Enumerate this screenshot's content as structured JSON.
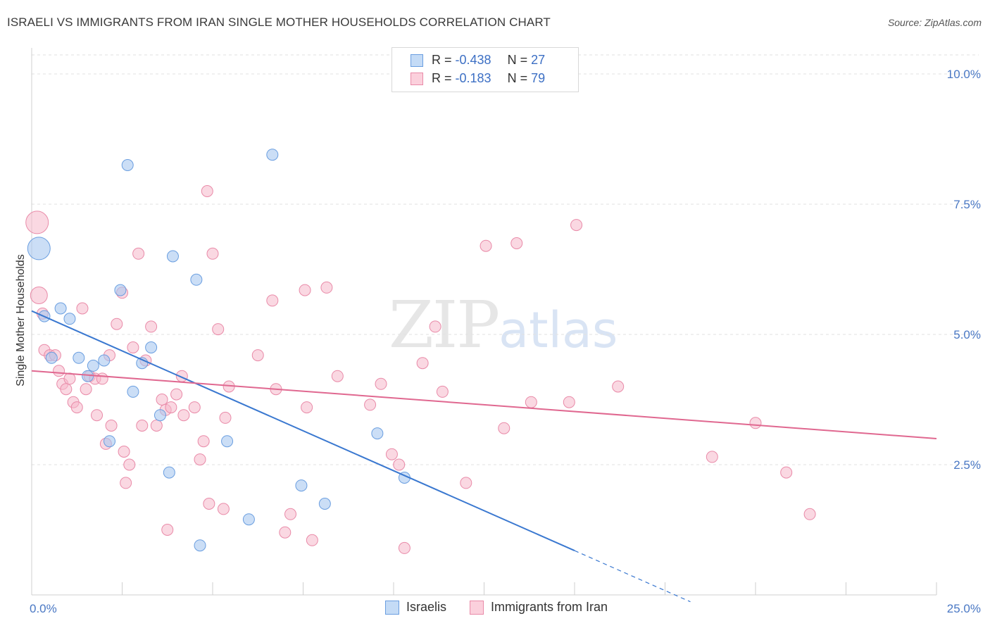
{
  "header": {
    "title": "ISRAELI VS IMMIGRANTS FROM IRAN SINGLE MOTHER HOUSEHOLDS CORRELATION CHART",
    "source": "Source: ZipAtlas.com"
  },
  "watermark": {
    "zip": "ZIP",
    "atlas": "atlas"
  },
  "legend": {
    "rows": [
      {
        "r_label": "R =",
        "r_value": "-0.438",
        "n_label": "N =",
        "n_value": "27",
        "color": "#a8c8f0"
      },
      {
        "r_label": "R =",
        "r_value": "-0.183",
        "n_label": "N =",
        "n_value": "79",
        "color": "#f6b8cb"
      }
    ]
  },
  "bottom_legend": {
    "israelis": "Israelis",
    "iran": "Immigrants from Iran"
  },
  "colors": {
    "israelis_fill": "#a8c8f0",
    "israelis_stroke": "#6a9ee0",
    "israelis_line": "#3a78d0",
    "iran_fill": "#f6b8cb",
    "iran_stroke": "#e98aa8",
    "iran_line": "#e06890"
  },
  "chart_data": {
    "type": "scatter",
    "ylabel": "Single Mother Households",
    "xlim": [
      0,
      25
    ],
    "ylim": [
      0,
      10.5
    ],
    "x_tick_labels": [
      "0.0%",
      "25.0%"
    ],
    "y_ticks": [
      {
        "value": 2.5,
        "label": "2.5%"
      },
      {
        "value": 5.0,
        "label": "5.0%"
      },
      {
        "value": 7.5,
        "label": "7.5%"
      },
      {
        "value": 10.0,
        "label": "10.0%"
      }
    ],
    "grid": true,
    "series": [
      {
        "name": "Israelis",
        "trend": {
          "x0": 0,
          "y0": 5.45,
          "x1": 15,
          "y1": 0.85,
          "dash_to_x": 18.2
        },
        "points": [
          {
            "x": 0.2,
            "y": 6.65,
            "s": 2
          },
          {
            "x": 0.35,
            "y": 5.35,
            "s": 1
          },
          {
            "x": 0.55,
            "y": 4.55,
            "s": 1
          },
          {
            "x": 0.8,
            "y": 5.5,
            "s": 1
          },
          {
            "x": 1.05,
            "y": 5.3,
            "s": 1
          },
          {
            "x": 1.3,
            "y": 4.55,
            "s": 1
          },
          {
            "x": 1.55,
            "y": 4.2,
            "s": 1
          },
          {
            "x": 1.7,
            "y": 4.4,
            "s": 1
          },
          {
            "x": 2.0,
            "y": 4.5,
            "s": 1
          },
          {
            "x": 2.15,
            "y": 2.95,
            "s": 1
          },
          {
            "x": 2.45,
            "y": 5.85,
            "s": 1
          },
          {
            "x": 2.65,
            "y": 8.25,
            "s": 1
          },
          {
            "x": 2.8,
            "y": 3.9,
            "s": 1
          },
          {
            "x": 3.05,
            "y": 4.45,
            "s": 1
          },
          {
            "x": 3.3,
            "y": 4.75,
            "s": 1
          },
          {
            "x": 3.55,
            "y": 3.45,
            "s": 1
          },
          {
            "x": 3.8,
            "y": 2.35,
            "s": 1
          },
          {
            "x": 3.9,
            "y": 6.5,
            "s": 1
          },
          {
            "x": 4.55,
            "y": 6.05,
            "s": 1
          },
          {
            "x": 4.65,
            "y": 0.95,
            "s": 1
          },
          {
            "x": 5.4,
            "y": 2.95,
            "s": 1
          },
          {
            "x": 6.0,
            "y": 1.45,
            "s": 1
          },
          {
            "x": 6.65,
            "y": 8.45,
            "s": 1
          },
          {
            "x": 7.45,
            "y": 2.1,
            "s": 1
          },
          {
            "x": 8.1,
            "y": 1.75,
            "s": 1
          },
          {
            "x": 9.55,
            "y": 3.1,
            "s": 1
          },
          {
            "x": 10.3,
            "y": 2.25,
            "s": 1
          }
        ]
      },
      {
        "name": "Immigrants from Iran",
        "trend": {
          "x0": 0,
          "y0": 4.3,
          "x1": 25,
          "y1": 3.0
        },
        "points": [
          {
            "x": 0.15,
            "y": 7.15,
            "s": 2
          },
          {
            "x": 0.2,
            "y": 5.75,
            "s": 1.5
          },
          {
            "x": 0.3,
            "y": 5.4,
            "s": 1
          },
          {
            "x": 0.35,
            "y": 4.7,
            "s": 1
          },
          {
            "x": 0.5,
            "y": 4.6,
            "s": 1
          },
          {
            "x": 0.65,
            "y": 4.6,
            "s": 1
          },
          {
            "x": 0.75,
            "y": 4.3,
            "s": 1
          },
          {
            "x": 0.85,
            "y": 4.05,
            "s": 1
          },
          {
            "x": 0.95,
            "y": 3.95,
            "s": 1
          },
          {
            "x": 1.05,
            "y": 4.15,
            "s": 1
          },
          {
            "x": 1.15,
            "y": 3.7,
            "s": 1
          },
          {
            "x": 1.25,
            "y": 3.6,
            "s": 1
          },
          {
            "x": 1.4,
            "y": 5.5,
            "s": 1
          },
          {
            "x": 1.5,
            "y": 3.95,
            "s": 1
          },
          {
            "x": 1.6,
            "y": 4.2,
            "s": 1
          },
          {
            "x": 1.75,
            "y": 4.15,
            "s": 1
          },
          {
            "x": 1.8,
            "y": 3.45,
            "s": 1
          },
          {
            "x": 1.95,
            "y": 4.15,
            "s": 1
          },
          {
            "x": 2.05,
            "y": 2.9,
            "s": 1
          },
          {
            "x": 2.15,
            "y": 4.6,
            "s": 1
          },
          {
            "x": 2.2,
            "y": 3.25,
            "s": 1
          },
          {
            "x": 2.35,
            "y": 5.2,
            "s": 1
          },
          {
            "x": 2.5,
            "y": 5.8,
            "s": 1
          },
          {
            "x": 2.55,
            "y": 2.75,
            "s": 1
          },
          {
            "x": 2.6,
            "y": 2.15,
            "s": 1
          },
          {
            "x": 2.7,
            "y": 2.5,
            "s": 1
          },
          {
            "x": 2.8,
            "y": 4.75,
            "s": 1
          },
          {
            "x": 2.95,
            "y": 6.55,
            "s": 1
          },
          {
            "x": 3.05,
            "y": 3.25,
            "s": 1
          },
          {
            "x": 3.15,
            "y": 4.5,
            "s": 1
          },
          {
            "x": 3.3,
            "y": 5.15,
            "s": 1
          },
          {
            "x": 3.45,
            "y": 3.25,
            "s": 1
          },
          {
            "x": 3.6,
            "y": 3.75,
            "s": 1
          },
          {
            "x": 3.7,
            "y": 3.55,
            "s": 1
          },
          {
            "x": 3.75,
            "y": 1.25,
            "s": 1
          },
          {
            "x": 3.85,
            "y": 3.6,
            "s": 1
          },
          {
            "x": 4.0,
            "y": 3.85,
            "s": 1
          },
          {
            "x": 4.15,
            "y": 4.2,
            "s": 1
          },
          {
            "x": 4.2,
            "y": 3.45,
            "s": 1
          },
          {
            "x": 4.5,
            "y": 3.6,
            "s": 1
          },
          {
            "x": 4.65,
            "y": 2.6,
            "s": 1
          },
          {
            "x": 4.75,
            "y": 2.95,
            "s": 1
          },
          {
            "x": 4.85,
            "y": 7.75,
            "s": 1
          },
          {
            "x": 4.9,
            "y": 1.75,
            "s": 1
          },
          {
            "x": 5.0,
            "y": 6.55,
            "s": 1
          },
          {
            "x": 5.15,
            "y": 5.1,
            "s": 1
          },
          {
            "x": 5.3,
            "y": 1.65,
            "s": 1
          },
          {
            "x": 5.35,
            "y": 3.4,
            "s": 1
          },
          {
            "x": 5.45,
            "y": 4.0,
            "s": 1
          },
          {
            "x": 6.25,
            "y": 4.6,
            "s": 1
          },
          {
            "x": 6.65,
            "y": 5.65,
            "s": 1
          },
          {
            "x": 6.75,
            "y": 3.95,
            "s": 1
          },
          {
            "x": 7.0,
            "y": 1.2,
            "s": 1
          },
          {
            "x": 7.15,
            "y": 1.55,
            "s": 1
          },
          {
            "x": 7.55,
            "y": 5.85,
            "s": 1
          },
          {
            "x": 7.6,
            "y": 3.6,
            "s": 1
          },
          {
            "x": 7.75,
            "y": 1.05,
            "s": 1
          },
          {
            "x": 8.15,
            "y": 5.9,
            "s": 1
          },
          {
            "x": 8.45,
            "y": 4.2,
            "s": 1
          },
          {
            "x": 9.35,
            "y": 3.65,
            "s": 1
          },
          {
            "x": 9.65,
            "y": 4.05,
            "s": 1
          },
          {
            "x": 9.95,
            "y": 2.7,
            "s": 1
          },
          {
            "x": 10.15,
            "y": 2.5,
            "s": 1
          },
          {
            "x": 10.3,
            "y": 0.9,
            "s": 1
          },
          {
            "x": 10.8,
            "y": 4.45,
            "s": 1
          },
          {
            "x": 11.15,
            "y": 5.15,
            "s": 1
          },
          {
            "x": 11.35,
            "y": 3.9,
            "s": 1
          },
          {
            "x": 12.0,
            "y": 2.15,
            "s": 1
          },
          {
            "x": 12.55,
            "y": 6.7,
            "s": 1
          },
          {
            "x": 13.05,
            "y": 3.2,
            "s": 1
          },
          {
            "x": 13.4,
            "y": 6.75,
            "s": 1
          },
          {
            "x": 13.8,
            "y": 3.7,
            "s": 1
          },
          {
            "x": 14.85,
            "y": 3.7,
            "s": 1
          },
          {
            "x": 15.05,
            "y": 7.1,
            "s": 1
          },
          {
            "x": 16.2,
            "y": 4.0,
            "s": 1
          },
          {
            "x": 18.8,
            "y": 2.65,
            "s": 1
          },
          {
            "x": 20.0,
            "y": 3.3,
            "s": 1
          },
          {
            "x": 20.85,
            "y": 2.35,
            "s": 1
          },
          {
            "x": 21.5,
            "y": 1.55,
            "s": 1
          }
        ]
      }
    ]
  }
}
